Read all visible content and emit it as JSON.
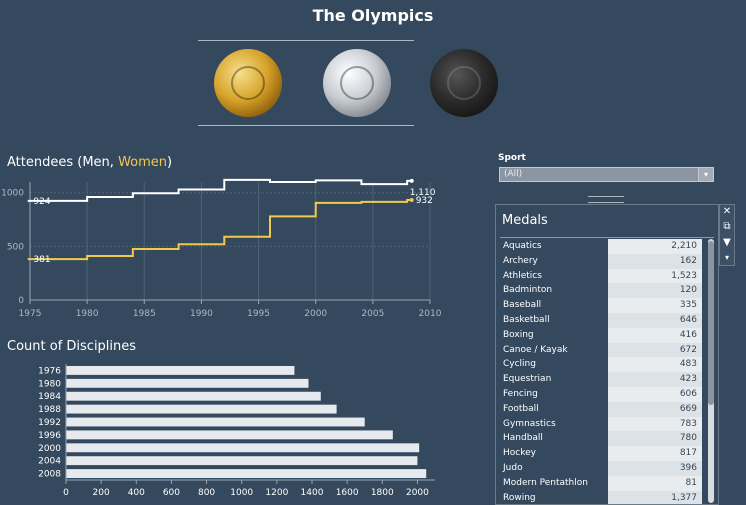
{
  "title": "The Olympics",
  "medals": [
    "gold-medal",
    "silver-medal",
    "bronze-medal"
  ],
  "attendees": {
    "title_prefix": "Attendees (",
    "men_label": "Men",
    "sep": ", ",
    "women_label": "Women",
    "title_suffix": ")",
    "colors": {
      "men": "#ffffff",
      "women": "#f2c94c"
    }
  },
  "disciplines": {
    "title": "Count of Disciplines"
  },
  "sport_filter": {
    "label": "Sport",
    "value": "(All)"
  },
  "medals_panel": {
    "title": "Medals",
    "rows": [
      {
        "sport": "Aquatics",
        "count": "2,210"
      },
      {
        "sport": "Archery",
        "count": "162"
      },
      {
        "sport": "Athletics",
        "count": "1,523"
      },
      {
        "sport": "Badminton",
        "count": "120"
      },
      {
        "sport": "Baseball",
        "count": "335"
      },
      {
        "sport": "Basketball",
        "count": "646"
      },
      {
        "sport": "Boxing",
        "count": "416"
      },
      {
        "sport": "Canoe / Kayak",
        "count": "672"
      },
      {
        "sport": "Cycling",
        "count": "483"
      },
      {
        "sport": "Equestrian",
        "count": "423"
      },
      {
        "sport": "Fencing",
        "count": "606"
      },
      {
        "sport": "Football",
        "count": "669"
      },
      {
        "sport": "Gymnastics",
        "count": "783"
      },
      {
        "sport": "Handball",
        "count": "780"
      },
      {
        "sport": "Hockey",
        "count": "817"
      },
      {
        "sport": "Judo",
        "count": "396"
      },
      {
        "sport": "Modern Pentathlon",
        "count": "81"
      },
      {
        "sport": "Rowing",
        "count": "1,377"
      }
    ],
    "tool_icons": [
      "close-icon",
      "popout-icon",
      "filter-icon",
      "dropdown-icon"
    ]
  },
  "chart_data": [
    {
      "type": "line",
      "title": "Attendees (Men, Women)",
      "x": [
        1976,
        1980,
        1984,
        1988,
        1992,
        1996,
        2000,
        2004,
        2008
      ],
      "series": [
        {
          "name": "Men",
          "values": [
            924,
            960,
            995,
            1030,
            1120,
            1100,
            1115,
            1080,
            1110
          ]
        },
        {
          "name": "Women",
          "values": [
            381,
            410,
            475,
            520,
            590,
            780,
            905,
            915,
            932
          ]
        }
      ],
      "labels": {
        "men_start": "924",
        "women_start": "381",
        "men_end": "1,110",
        "women_end": "932"
      },
      "xlim": [
        1975,
        2010
      ],
      "ylim": [
        0,
        1100
      ],
      "xticks": [
        1975,
        1980,
        1985,
        1990,
        1995,
        2000,
        2005,
        2010
      ],
      "yticks": [
        0,
        500,
        1000
      ],
      "grid": true
    },
    {
      "type": "bar",
      "title": "Count of Disciplines",
      "orientation": "horizontal",
      "categories": [
        "1976",
        "1980",
        "1984",
        "1988",
        "1992",
        "1996",
        "2000",
        "2004",
        "2008"
      ],
      "values": [
        1300,
        1380,
        1450,
        1540,
        1700,
        1860,
        2010,
        2000,
        2050
      ],
      "xticks": [
        0,
        200,
        400,
        600,
        800,
        1000,
        1200,
        1400,
        1600,
        1800,
        2000
      ],
      "xlim": [
        0,
        2100
      ]
    }
  ]
}
